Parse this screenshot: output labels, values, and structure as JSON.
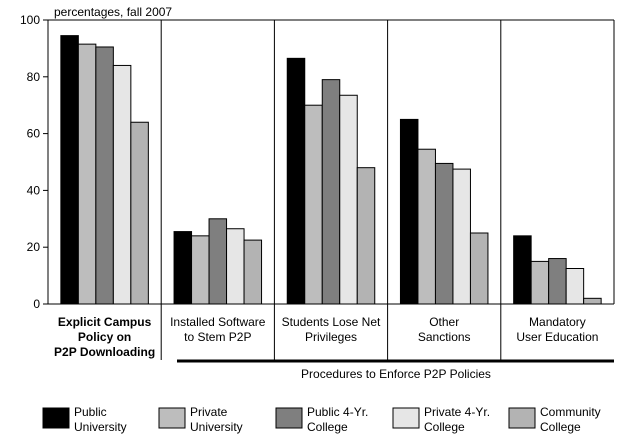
{
  "chart_data": {
    "type": "bar",
    "subtitle": "percentages, fall 2007",
    "ylim": [
      0,
      100
    ],
    "yticks": [
      "0",
      "20",
      "40",
      "60",
      "80",
      "100"
    ],
    "grid": false,
    "legend_position": "bottom",
    "categories": [
      {
        "lines": [
          "Explicit Campus",
          "Policy on",
          "P2P Downloading"
        ],
        "bold": true
      },
      {
        "lines": [
          "Installed Software",
          "to Stem P2P"
        ],
        "bold": false
      },
      {
        "lines": [
          "Students Lose Net",
          "Privileges"
        ],
        "bold": false
      },
      {
        "lines": [
          "Other",
          "Sanctions"
        ],
        "bold": false
      },
      {
        "lines": [
          "Mandatory",
          "User Education"
        ],
        "bold": false
      }
    ],
    "group_label": "Procedures to Enforce P2P Policies",
    "series": [
      {
        "name": [
          "Public",
          "University"
        ],
        "color": "#000000",
        "values": [
          94.5,
          25.5,
          86.5,
          65,
          24
        ]
      },
      {
        "name": [
          "Private",
          "University"
        ],
        "color": "#bdbdbd",
        "values": [
          91.5,
          24,
          70,
          54.5,
          15
        ]
      },
      {
        "name": [
          "Public 4-Yr.",
          "College"
        ],
        "color": "#7f7f7f",
        "values": [
          90.5,
          30,
          79,
          49.5,
          16
        ]
      },
      {
        "name": [
          "Private 4-Yr.",
          "College"
        ],
        "color": "#e6e6e6",
        "values": [
          84,
          26.5,
          73.5,
          47.5,
          12.5
        ]
      },
      {
        "name": [
          "Community",
          "College"
        ],
        "color": "#b3b3b3",
        "values": [
          64,
          22.5,
          48,
          25,
          2
        ]
      }
    ]
  }
}
